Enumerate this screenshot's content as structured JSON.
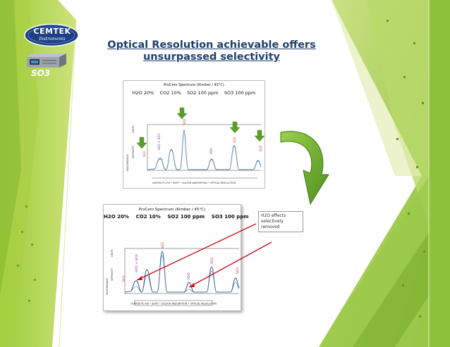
{
  "slide": {
    "title_line1": "Optical Resolution achievable offers",
    "title_line2": "unsurpassed selectivity",
    "logo_text": "CEMTEK",
    "logo_sub": "Instruments",
    "device_label": "SO3"
  },
  "spectrum_top": {
    "heading": "ProCem Spectrum (Kimber / 45°C)",
    "conditions": "H2O 20%    CO2 10%    SO2 100 ppm    SO3 100 ppm",
    "peak_labels": [
      "SO3",
      "H2O + SO3",
      "SO2",
      "H2O",
      "SO3",
      "SO3"
    ],
    "axis_labels": [
      "ABSORBANCE",
      "INTENSITY",
      "UNITS"
    ],
    "footer": "CEMTEK PC-PSI • SHIFT • SULFUR ABSORPTION • OPTICAL RESOLUTION"
  },
  "spectrum_bottom": {
    "heading": "ProCem Spectrum (Kimber / 45°C)",
    "conditions": "H2O 20%    CO2 10%    SO2 100 ppm    SO3 100 ppm",
    "peak_labels": [
      "SO3",
      "H2O + SO3",
      "SO2",
      "H2O",
      "SO3",
      "SO3"
    ],
    "axis_labels": [
      "ABSORBANCE",
      "INTENSITY",
      "UNITS"
    ],
    "footer": "CEMTEK PC-PSI • SHIFT • SULFUR ABSORPTION • OPTICAL RESOLUTION"
  },
  "note": {
    "text": "H2O effects selectively removed"
  }
}
